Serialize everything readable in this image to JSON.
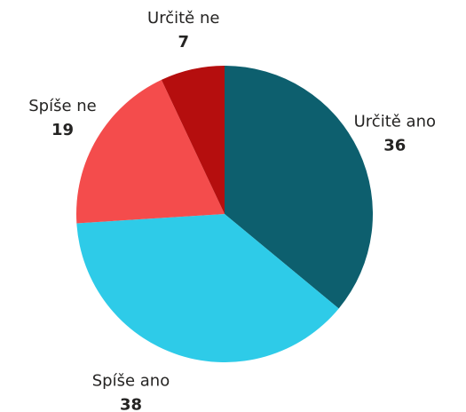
{
  "chart_data": {
    "type": "pie",
    "categories": [
      "Určitě ano",
      "Spíše ano",
      "Spíše ne",
      "Určitě ne"
    ],
    "values": [
      36,
      38,
      19,
      7
    ],
    "colors": [
      "#0d5f6e",
      "#2ecbe8",
      "#f44c4c",
      "#b50e0e"
    ]
  }
}
